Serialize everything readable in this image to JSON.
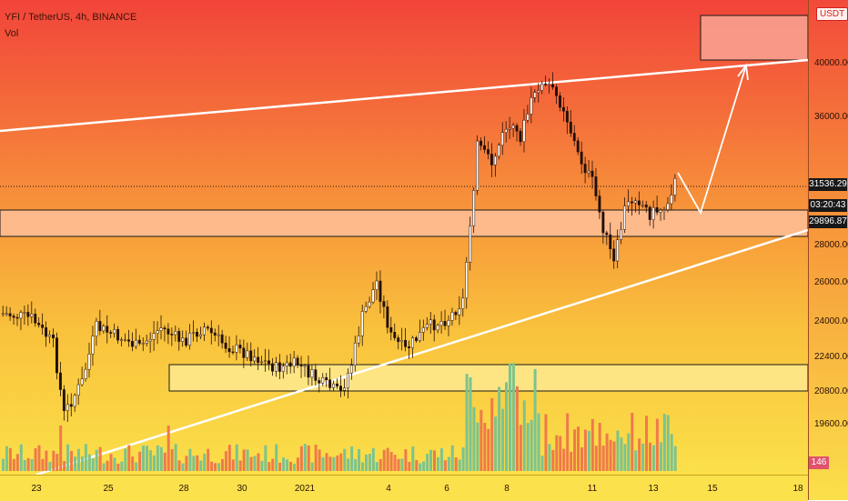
{
  "chart_data": {
    "type": "candlestick",
    "title": "YFI / TetherUS, 4h, BINANCE",
    "indicator_label": "Vol",
    "currency": "USDT",
    "y_ticks": [
      "40000.00",
      "36000.00",
      "28000.00",
      "26000.00",
      "24000.00",
      "22400.00",
      "20800.00",
      "19600.00"
    ],
    "x_ticks": [
      "23",
      "25",
      "28",
      "30",
      "2021",
      "4",
      "6",
      "8",
      "11",
      "13",
      "15",
      "18"
    ],
    "last_price": "31536.29",
    "countdown": "03:20:43",
    "level_price": "29896.87",
    "volume_value": "146",
    "colors": {
      "up": "#6fc08a",
      "down": "#1f0f08",
      "vol_up": "#7cc38f",
      "vol_down": "#ef7a4a"
    }
  }
}
